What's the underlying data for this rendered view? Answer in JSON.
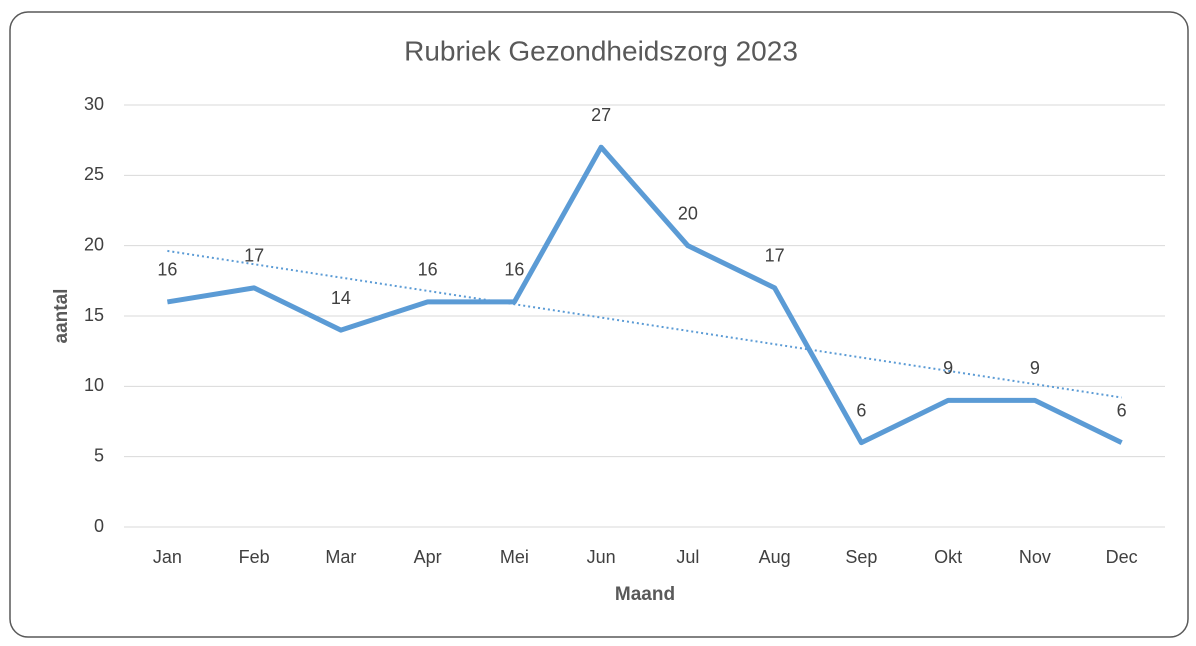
{
  "chart_data": {
    "type": "line",
    "title": "Rubriek Gezondheidszorg 2023",
    "x_label": "Maand",
    "y_label": "aantal",
    "categories": [
      "Jan",
      "Feb",
      "Mar",
      "Apr",
      "Mei",
      "Jun",
      "Jul",
      "Aug",
      "Sep",
      "Okt",
      "Nov",
      "Dec"
    ],
    "series": [
      {
        "name": "aantal",
        "color": "#5b9bd5",
        "values": [
          16,
          17,
          14,
          16,
          16,
          27,
          20,
          17,
          6,
          9,
          9,
          6
        ]
      }
    ],
    "ylim": [
      0,
      30
    ],
    "yticks": [
      0,
      5,
      10,
      15,
      20,
      25,
      30
    ],
    "grid": true,
    "trendline": "linear",
    "data_labels": true
  }
}
